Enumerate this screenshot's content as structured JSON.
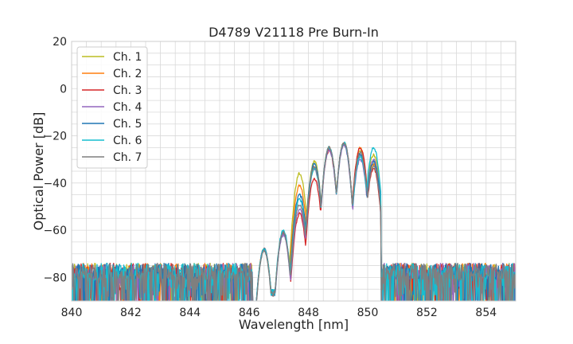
{
  "chart_data": {
    "type": "line",
    "title": "D4789 V21118 Pre Burn-In",
    "xlabel": "Wavelength [nm]",
    "ylabel": "Optical Power [dB]",
    "xlim": [
      840,
      855
    ],
    "ylim": [
      -90,
      20
    ],
    "xticks": [
      840,
      842,
      844,
      846,
      848,
      850,
      852,
      854
    ],
    "yticks": [
      20,
      0,
      -20,
      -40,
      -60,
      -80
    ],
    "grid": true,
    "legend_position": "top-left",
    "noise_floor_db": -80,
    "series": [
      {
        "name": "Ch. 1",
        "color": "#bcbd22",
        "peaks": [
          [
            846.5,
            -68
          ],
          [
            847.15,
            -61
          ],
          [
            847.7,
            -36
          ],
          [
            848.2,
            -31
          ],
          [
            848.7,
            -25
          ],
          [
            849.2,
            -23
          ],
          [
            849.75,
            -26
          ],
          [
            850.2,
            -28
          ]
        ]
      },
      {
        "name": "Ch. 2",
        "color": "#ff7f0e",
        "peaks": [
          [
            846.5,
            -68
          ],
          [
            847.15,
            -61
          ],
          [
            847.7,
            -41
          ],
          [
            848.2,
            -33
          ],
          [
            848.7,
            -25
          ],
          [
            849.2,
            -23
          ],
          [
            849.75,
            -25
          ],
          [
            850.2,
            -32
          ]
        ]
      },
      {
        "name": "Ch. 3",
        "color": "#d62728",
        "peaks": [
          [
            846.5,
            -68
          ],
          [
            847.15,
            -61
          ],
          [
            847.7,
            -53
          ],
          [
            848.2,
            -38
          ],
          [
            848.7,
            -26
          ],
          [
            849.2,
            -23
          ],
          [
            849.75,
            -25
          ],
          [
            850.2,
            -34
          ]
        ]
      },
      {
        "name": "Ch. 4",
        "color": "#9467bd",
        "peaks": [
          [
            846.5,
            -68
          ],
          [
            847.15,
            -62
          ],
          [
            847.7,
            -51
          ],
          [
            848.2,
            -34
          ],
          [
            848.7,
            -26
          ],
          [
            849.2,
            -24
          ],
          [
            849.75,
            -30
          ],
          [
            850.2,
            -30
          ]
        ]
      },
      {
        "name": "Ch. 5",
        "color": "#1f77b4",
        "peaks": [
          [
            846.5,
            -68
          ],
          [
            847.15,
            -61
          ],
          [
            847.7,
            -45
          ],
          [
            848.2,
            -32
          ],
          [
            848.7,
            -25
          ],
          [
            849.2,
            -23
          ],
          [
            849.75,
            -28
          ],
          [
            850.2,
            -31
          ]
        ]
      },
      {
        "name": "Ch. 6",
        "color": "#17becf",
        "peaks": [
          [
            846.5,
            -68
          ],
          [
            847.15,
            -60
          ],
          [
            847.7,
            -47
          ],
          [
            848.2,
            -34
          ],
          [
            848.7,
            -25
          ],
          [
            849.2,
            -23
          ],
          [
            849.75,
            -29
          ],
          [
            850.2,
            -25
          ]
        ]
      },
      {
        "name": "Ch. 7",
        "color": "#7f7f7f",
        "peaks": [
          [
            846.5,
            -69
          ],
          [
            847.15,
            -61
          ],
          [
            847.7,
            -49
          ],
          [
            848.2,
            -33
          ],
          [
            848.7,
            -25
          ],
          [
            849.2,
            -23
          ],
          [
            849.75,
            -27
          ],
          [
            850.2,
            -33
          ]
        ]
      }
    ]
  }
}
